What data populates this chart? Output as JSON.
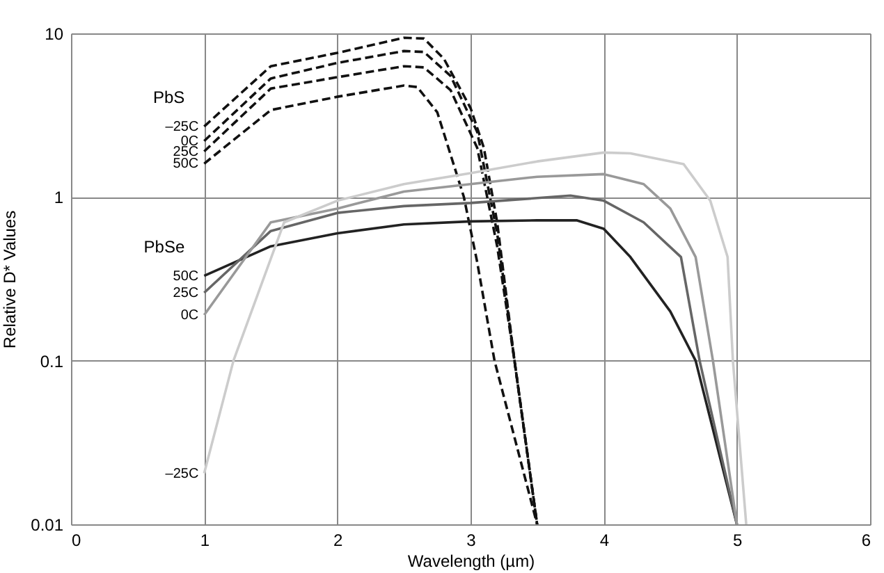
{
  "chart_data": {
    "type": "line",
    "xlabel": "Wavelength (µm)",
    "ylabel": "Relative D* Values",
    "log": "y",
    "xlim": [
      0,
      6
    ],
    "xticks": [
      0,
      1,
      2,
      3,
      4,
      5,
      6
    ],
    "ylim": [
      0.01,
      10
    ],
    "yticks": [
      0.01,
      0.1,
      1,
      10
    ],
    "grid": true,
    "marker": "none",
    "annotations": [
      "PbS",
      "PbSe"
    ],
    "series": [
      {
        "name": "–25C",
        "color": "#111111",
        "line_style": "dashed",
        "x": [
          1,
          1.5,
          2,
          2.5,
          2.65,
          2.8,
          3.0,
          3.1,
          3.2,
          3.33,
          3.5
        ],
        "values": [
          2.7,
          6.3,
          7.6,
          9.4,
          9.3,
          7.0,
          3.5,
          2.0,
          0.7,
          0.1,
          0.01
        ]
      },
      {
        "name": "0C",
        "color": "#111111",
        "line_style": "dashed",
        "x": [
          1,
          1.5,
          2,
          2.5,
          2.65,
          2.85,
          3.05,
          3.2,
          3.33,
          3.5
        ],
        "values": [
          2.2,
          5.3,
          6.6,
          7.8,
          7.7,
          5.5,
          2.5,
          0.6,
          0.1,
          0.01
        ]
      },
      {
        "name": "25C",
        "color": "#111111",
        "line_style": "dashed",
        "x": [
          1,
          1.5,
          2,
          2.5,
          2.65,
          2.85,
          3.05,
          3.2,
          3.33,
          3.5
        ],
        "values": [
          1.9,
          4.6,
          5.4,
          6.3,
          6.2,
          4.5,
          2.0,
          0.5,
          0.1,
          0.01
        ]
      },
      {
        "name": "50C",
        "color": "#111111",
        "line_style": "dashed",
        "x": [
          1,
          1.5,
          2,
          2.5,
          2.6,
          2.75,
          2.95,
          3.05,
          3.18,
          3.5
        ],
        "values": [
          1.6,
          3.4,
          4.1,
          4.8,
          4.7,
          3.3,
          1.0,
          0.4,
          0.1,
          0.01
        ]
      },
      {
        "name": "50C",
        "color": "#222222",
        "line_style": "solid",
        "x": [
          1,
          1.5,
          2,
          2.5,
          3,
          3.5,
          3.8,
          4,
          4.2,
          4.5,
          4.69,
          5
        ],
        "values": [
          0.33,
          0.5,
          0.6,
          0.68,
          0.71,
          0.72,
          0.72,
          0.64,
          0.43,
          0.2,
          0.1,
          0.01
        ]
      },
      {
        "name": "25C",
        "color": "#666666",
        "line_style": "solid",
        "x": [
          1,
          1.5,
          2,
          2.5,
          3,
          3.75,
          4,
          4.3,
          4.58,
          4.72,
          5
        ],
        "values": [
          0.26,
          0.62,
          0.8,
          0.88,
          0.92,
          1.02,
          0.95,
          0.7,
          0.43,
          0.1,
          0.01
        ]
      },
      {
        "name": "0C",
        "color": "#999999",
        "line_style": "solid",
        "x": [
          1,
          1.5,
          2,
          2.5,
          3,
          3.5,
          4,
          4.3,
          4.5,
          4.69,
          4.82,
          5
        ],
        "values": [
          0.19,
          0.7,
          0.85,
          1.08,
          1.2,
          1.33,
          1.38,
          1.2,
          0.85,
          0.43,
          0.1,
          0.01
        ]
      },
      {
        "name": "–25C",
        "color": "#cccccc",
        "line_style": "solid",
        "x": [
          1,
          1.22,
          1.6,
          2,
          2.5,
          3,
          3.5,
          4,
          4.2,
          4.6,
          4.8,
          4.93,
          4.97,
          5.07
        ],
        "values": [
          0.0205,
          0.1,
          0.7,
          0.95,
          1.2,
          1.4,
          1.65,
          1.87,
          1.85,
          1.59,
          0.95,
          0.43,
          0.1,
          0.01
        ]
      }
    ]
  }
}
